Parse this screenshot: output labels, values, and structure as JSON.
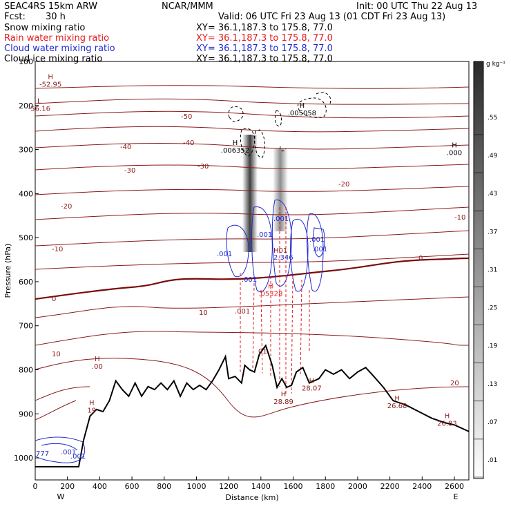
{
  "header": {
    "model": "SEAC4RS 15km ARW",
    "org": "NCAR/MMM",
    "init": "Init: 00 UTC Thu 22 Aug 13",
    "fcst_label": "Fcst:",
    "fcst_value": "30 h",
    "valid": "Valid: 06 UTC Fri 23 Aug 13 (01 CDT Fri 23 Aug 13)"
  },
  "fields": [
    {
      "name": "Snow mixing ratio",
      "xy": "XY=  36.1,187.3 to 175.8, 77.0",
      "color": "#000000"
    },
    {
      "name": "Rain water mixing ratio",
      "xy": "XY=  36.1,187.3 to 175.8, 77.0",
      "color": "#e8191c"
    },
    {
      "name": "Cloud water mixing ratio",
      "xy": "XY=  36.1,187.3 to 175.8, 77.0",
      "color": "#1f2bd0"
    },
    {
      "name": "Cloud ice mixing ratio",
      "xy": "XY=  36.1,187.3 to 175.8, 77.0",
      "color": "#000000"
    }
  ],
  "colorbar": {
    "unit": "g kg⁻¹",
    "labels": [
      ".01",
      ".07",
      ".13",
      ".19",
      ".25",
      ".31",
      ".37",
      ".43",
      ".49",
      ".55"
    ]
  },
  "colors": {
    "temperature_contour": "#8b1a1a",
    "zero_isotherm": "#7a0a0a",
    "terrain": "#000000",
    "cloud_water": "#1f2bd0",
    "rain_water": "#e8191c"
  },
  "chart_data": {
    "type": "contour",
    "xlabel": "Distance (km)",
    "ylabel": "Pressure (hPa)",
    "xlim": [
      0,
      2690
    ],
    "ylim": [
      1050,
      100
    ],
    "x_ticks": [
      0,
      200,
      400,
      600,
      800,
      1000,
      1200,
      1400,
      1600,
      1800,
      2000,
      2200,
      2400,
      2600
    ],
    "y_ticks": [
      100,
      200,
      300,
      400,
      500,
      600,
      700,
      800,
      900,
      1000
    ],
    "end_labels": {
      "left": "W",
      "right": "E"
    },
    "temperature_contour_labels": [
      "-50",
      "-40",
      "-40",
      "-30",
      "-30",
      "-20",
      "-20",
      "-10",
      "-10",
      "0",
      "0",
      "10",
      "10",
      "20"
    ],
    "extrema": [
      {
        "kind": "H",
        "value": "-52.95",
        "x": 95,
        "p": 140,
        "color": "#8b1a1a"
      },
      {
        "kind": "L",
        "value": "-56.16",
        "x": 25,
        "p": 195,
        "color": "#8b1a1a"
      },
      {
        "kind": "H",
        "value": ".006352",
        "x": 1240,
        "p": 290,
        "color": "#000000"
      },
      {
        "kind": "H",
        "value": ".005058",
        "x": 1655,
        "p": 205,
        "color": "#000000"
      },
      {
        "kind": "H",
        "value": ".000",
        "x": 2600,
        "p": 295,
        "color": "#000000"
      },
      {
        "kind": "H",
        "value": ".00",
        "x": 385,
        "p": 780,
        "color": "#8b1a1a"
      },
      {
        "kind": "H",
        "value": "19",
        "x": 350,
        "p": 880,
        "color": "#8b1a1a"
      },
      {
        "kind": "H",
        "value": "28.89",
        "x": 1540,
        "p": 860,
        "color": "#8b1a1a"
      },
      {
        "kind": "H",
        "value": "28.07",
        "x": 1715,
        "p": 830,
        "color": "#8b1a1a"
      },
      {
        "kind": "H",
        "value": "26.68",
        "x": 2245,
        "p": 870,
        "color": "#8b1a1a"
      },
      {
        "kind": "H",
        "value": "26.83",
        "x": 2555,
        "p": 910,
        "color": "#8b1a1a"
      },
      {
        "kind": "H",
        "value": ".05328",
        "x": 1460,
        "p": 615,
        "color": "#e8191c"
      }
    ],
    "cloud_water_labels": [
      ".001",
      ".001",
      ".001",
      ".001",
      "2.346",
      ".001",
      ".001",
      "777",
      ".001",
      ".001"
    ],
    "rain_water_labels": [
      ".001",
      "01",
      "H01"
    ],
    "terrain_profile": [
      [
        0,
        1020
      ],
      [
        100,
        1020
      ],
      [
        200,
        1020
      ],
      [
        270,
        1020
      ],
      [
        300,
        960
      ],
      [
        340,
        905
      ],
      [
        380,
        890
      ],
      [
        420,
        895
      ],
      [
        460,
        870
      ],
      [
        500,
        825
      ],
      [
        540,
        845
      ],
      [
        580,
        860
      ],
      [
        620,
        830
      ],
      [
        660,
        860
      ],
      [
        700,
        838
      ],
      [
        740,
        845
      ],
      [
        780,
        830
      ],
      [
        820,
        845
      ],
      [
        860,
        825
      ],
      [
        900,
        860
      ],
      [
        940,
        830
      ],
      [
        980,
        845
      ],
      [
        1020,
        835
      ],
      [
        1060,
        845
      ],
      [
        1100,
        825
      ],
      [
        1140,
        800
      ],
      [
        1180,
        770
      ],
      [
        1200,
        820
      ],
      [
        1240,
        815
      ],
      [
        1280,
        830
      ],
      [
        1300,
        790
      ],
      [
        1330,
        800
      ],
      [
        1360,
        805
      ],
      [
        1390,
        765
      ],
      [
        1430,
        745
      ],
      [
        1470,
        790
      ],
      [
        1500,
        840
      ],
      [
        1530,
        820
      ],
      [
        1560,
        840
      ],
      [
        1590,
        835
      ],
      [
        1620,
        805
      ],
      [
        1660,
        795
      ],
      [
        1700,
        830
      ],
      [
        1760,
        820
      ],
      [
        1800,
        800
      ],
      [
        1850,
        810
      ],
      [
        1900,
        800
      ],
      [
        1950,
        820
      ],
      [
        2000,
        805
      ],
      [
        2050,
        795
      ],
      [
        2100,
        815
      ],
      [
        2160,
        840
      ],
      [
        2220,
        870
      ],
      [
        2300,
        880
      ],
      [
        2380,
        895
      ],
      [
        2460,
        910
      ],
      [
        2540,
        920
      ],
      [
        2600,
        925
      ],
      [
        2690,
        940
      ]
    ]
  }
}
